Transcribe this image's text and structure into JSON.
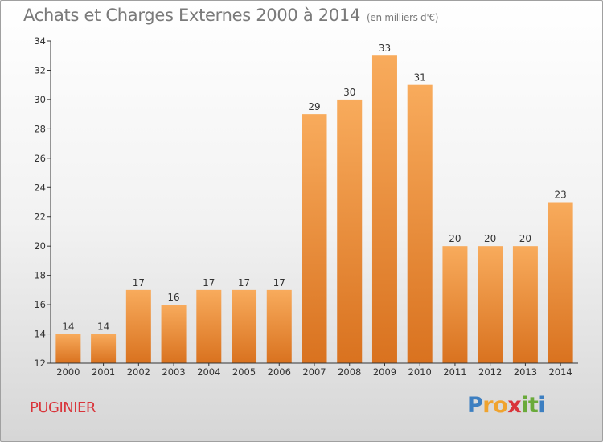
{
  "chart_data": {
    "type": "bar",
    "title": "Achats et Charges Externes 2000 à 2014",
    "subtitle": "(en milliers d'€)",
    "categories": [
      "2000",
      "2001",
      "2002",
      "2003",
      "2004",
      "2005",
      "2006",
      "2007",
      "2008",
      "2009",
      "2010",
      "2011",
      "2012",
      "2013",
      "2014"
    ],
    "values": [
      14,
      14,
      17,
      16,
      17,
      17,
      17,
      29,
      30,
      33,
      31,
      20,
      20,
      20,
      23
    ],
    "ylim": [
      12,
      34
    ],
    "yticks": [
      12,
      14,
      16,
      18,
      20,
      22,
      24,
      26,
      28,
      30,
      32,
      34
    ],
    "xlabel": "",
    "ylabel": "",
    "grid": false,
    "legend": "none"
  },
  "commune": "PUGINIER",
  "logo": {
    "letters": [
      "P",
      "r",
      "o",
      "x",
      "i",
      "t",
      "i"
    ],
    "colors": [
      "#3d7fc1",
      "#f0a32e",
      "#f0a32e",
      "#d9343a",
      "#6aaa3a",
      "#6aaa3a",
      "#3d7fc1"
    ]
  },
  "colors": {
    "bar_light": "#f8ab5c",
    "bar_dark": "#d9721f",
    "axis": "#333333"
  }
}
